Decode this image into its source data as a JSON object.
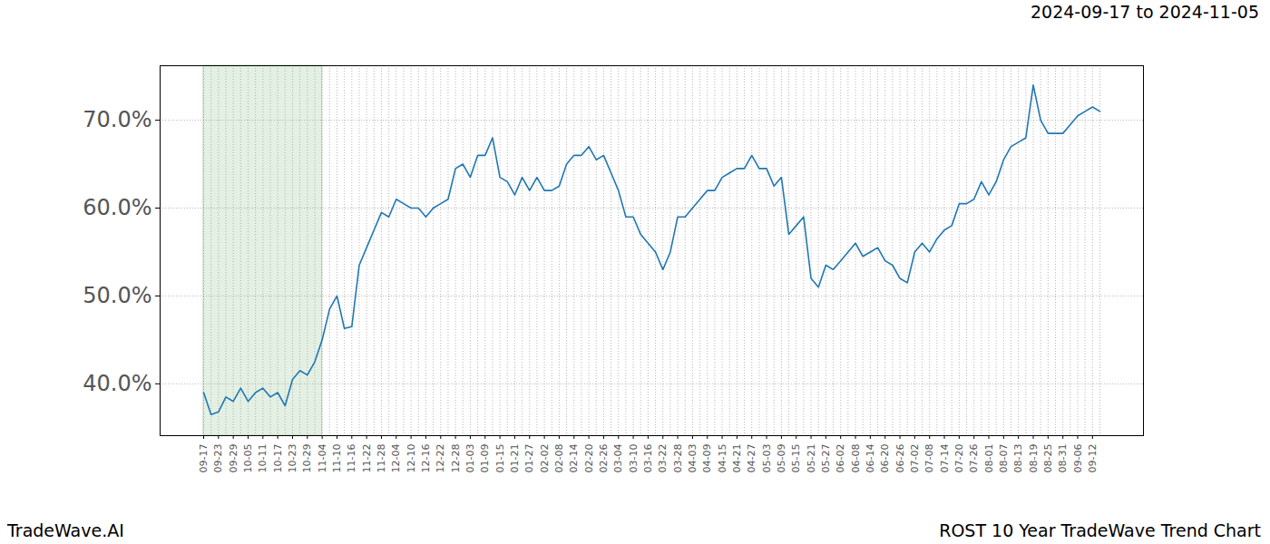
{
  "chart_data": {
    "type": "line",
    "title": "ROST 10 Year TradeWave Trend Chart",
    "subtitle": "2024-09-17 to 2024-11-05",
    "caption": "TradeWave.AI",
    "color": "#1f77b4",
    "grid": true,
    "highlight": {
      "from": "09-17",
      "to": "11-04",
      "color": "#e3f0e3"
    },
    "categories": [
      "09-17",
      null,
      "09-23",
      null,
      "09-29",
      null,
      "10-05",
      null,
      "10-11",
      null,
      "10-17",
      null,
      "10-23",
      null,
      "10-29",
      null,
      "11-04",
      null,
      "11-10",
      null,
      "11-16",
      null,
      "11-22",
      null,
      "11-28",
      null,
      "12-04",
      null,
      "12-10",
      null,
      "12-16",
      null,
      "12-22",
      null,
      "12-28",
      null,
      "01-03",
      null,
      "01-09",
      null,
      "01-15",
      null,
      "01-21",
      null,
      "01-27",
      null,
      "02-02",
      null,
      "02-08",
      null,
      "02-14",
      null,
      "02-20",
      null,
      "02-26",
      null,
      "03-04",
      null,
      "03-10",
      null,
      "03-16",
      null,
      "03-22",
      null,
      "03-28",
      null,
      "04-03",
      null,
      "04-09",
      null,
      "04-15",
      null,
      "04-21",
      null,
      "04-27",
      null,
      "05-03",
      null,
      "05-09",
      null,
      "05-15",
      null,
      "05-21",
      null,
      "05-27",
      null,
      "06-02",
      null,
      "06-08",
      null,
      "06-14",
      null,
      "06-20",
      null,
      "06-26",
      null,
      "07-02",
      null,
      "07-08",
      null,
      "07-14",
      null,
      "07-20",
      null,
      "07-26",
      null,
      "08-01",
      null,
      "08-07",
      null,
      "08-13",
      null,
      "08-19",
      null,
      "08-25",
      null,
      "08-31",
      null,
      "09-06",
      null,
      "09-12",
      null
    ],
    "values": [
      39,
      36.5,
      36.8,
      38.5,
      38,
      39.5,
      38,
      39,
      39.5,
      38.5,
      39,
      37.5,
      40.5,
      41.5,
      41,
      42.5,
      45,
      48.5,
      50,
      46.3,
      46.5,
      53.5,
      55.5,
      57.5,
      59.5,
      59,
      61,
      60.5,
      60,
      60,
      59,
      60,
      60.5,
      61,
      64.5,
      65,
      63.5,
      66,
      66,
      68,
      63.5,
      63,
      61.5,
      63.5,
      62,
      63.5,
      62,
      62,
      62.5,
      65,
      66,
      66,
      67,
      65.5,
      66,
      64,
      62,
      59,
      59,
      57,
      56,
      55,
      53,
      55,
      59,
      59,
      60,
      61,
      62,
      62,
      63.5,
      64,
      64.5,
      64.5,
      66,
      64.5,
      64.5,
      62.5,
      63.5,
      57,
      58,
      59,
      52,
      51,
      53.5,
      53,
      54,
      55,
      56,
      54.5,
      55,
      55.5,
      54,
      53.5,
      52,
      51.5,
      55,
      56,
      55,
      56.5,
      57.5,
      58,
      60.5,
      60.5,
      61,
      63,
      61.5,
      63,
      65.5,
      67,
      67.5,
      68,
      74,
      70,
      68.5,
      68.5,
      68.5,
      69.5,
      70.5,
      71,
      71.5,
      71
    ],
    "ylim": [
      34.1,
      76.2
    ],
    "yticks": [
      {
        "value": 40,
        "label": "40.0%"
      },
      {
        "value": 50,
        "label": "50.0%"
      },
      {
        "value": 60,
        "label": "60.0%"
      },
      {
        "value": 70,
        "label": "70.0%"
      }
    ]
  }
}
